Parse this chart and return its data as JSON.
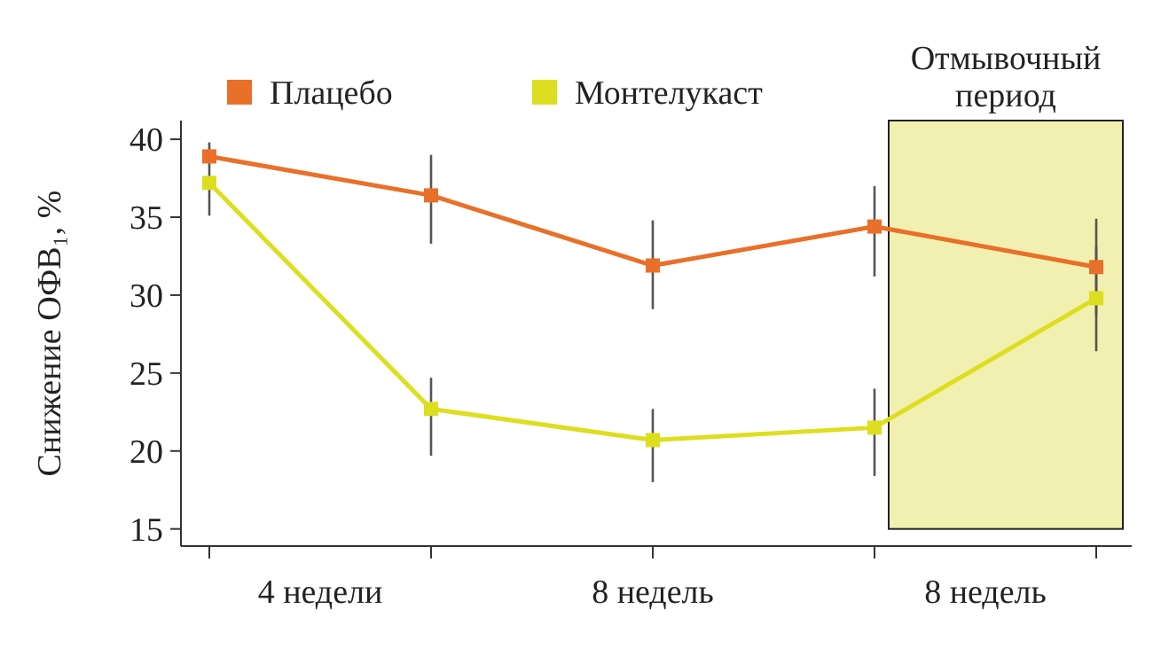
{
  "chart_data": {
    "type": "line",
    "ylabel": "Снижение ОФВ₁, %",
    "categories": [
      null,
      null,
      "8 недель",
      null,
      null
    ],
    "ylim": [
      13.9,
      41.2
    ],
    "yticks": [
      15,
      20,
      25,
      30,
      35,
      40
    ],
    "series": [
      {
        "name": "Плацебо",
        "color": "#e8702a",
        "values": [
          38.9,
          36.4,
          31.9,
          34.4,
          31.8
        ],
        "errors": [
          null,
          [
            33.3,
            39.0
          ],
          [
            29.1,
            34.8
          ],
          [
            31.2,
            37.0
          ],
          [
            28.7,
            34.9
          ]
        ]
      },
      {
        "name": "Монтелукаст",
        "color": "#dede20",
        "values": [
          37.2,
          22.7,
          20.7,
          21.5,
          29.8
        ],
        "errors": [
          [
            35.1,
            39.8
          ],
          [
            19.7,
            24.7
          ],
          [
            18.0,
            22.7
          ],
          [
            18.4,
            24.0
          ],
          [
            26.4,
            33.1
          ]
        ]
      }
    ],
    "annotations": [
      "4 недели",
      "8 недель",
      "Отмывочный период"
    ],
    "marker": "square",
    "legend": "top left",
    "grid": false
  }
}
